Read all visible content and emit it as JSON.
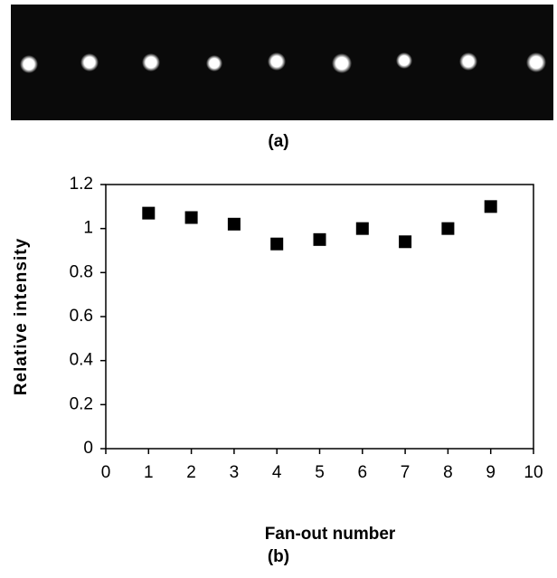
{
  "image_caption": "(a)",
  "chart_data": {
    "type": "scatter",
    "x": [
      1,
      2,
      3,
      4,
      5,
      6,
      7,
      8,
      9
    ],
    "values": [
      1.07,
      1.05,
      1.02,
      0.93,
      0.95,
      1.0,
      0.94,
      1.0,
      1.1
    ],
    "color": "#000000",
    "xlim": [
      0,
      10
    ],
    "xticks": [
      0,
      1,
      2,
      3,
      4,
      5,
      6,
      7,
      8,
      9,
      10
    ],
    "ylim": [
      0,
      1.2
    ],
    "yticks": [
      0,
      0.2,
      0.4,
      0.6,
      0.8,
      1,
      1.2
    ],
    "xlabel": "Fan-out number",
    "ylabel": "Relative intensity",
    "caption": "(b)"
  }
}
